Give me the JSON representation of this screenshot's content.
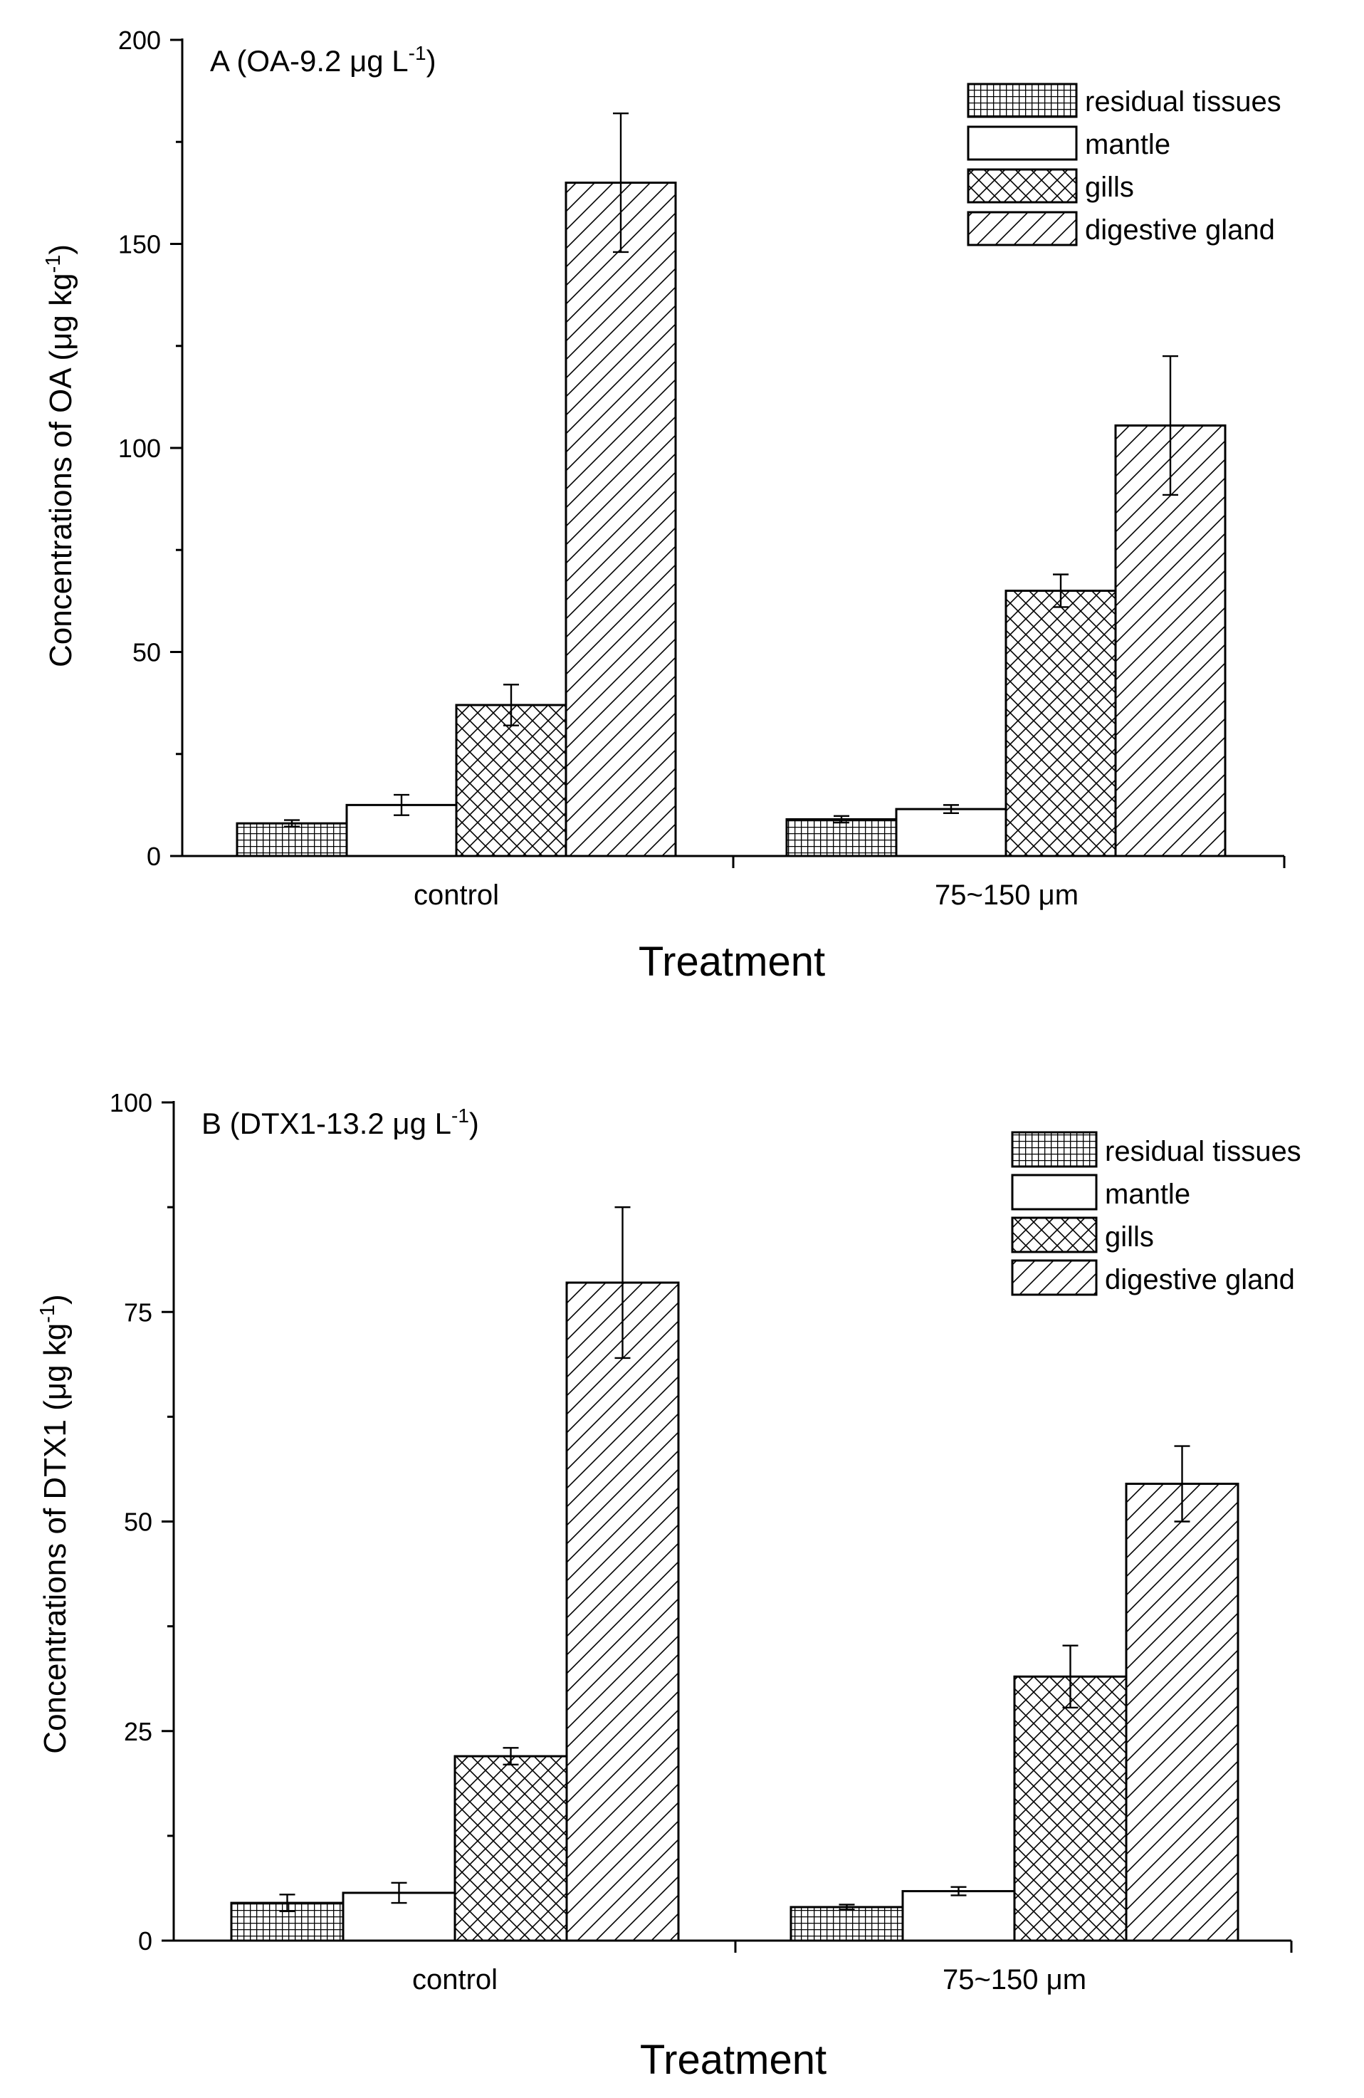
{
  "chart_data": [
    {
      "type": "bar",
      "title": "A (OA-9.2 μg L",
      "title_sup": "-1",
      "title_end": ")",
      "xlabel": "Treatment",
      "ylabel": "Concentrations of OA (μg kg",
      "ylabel_sup": "-1",
      "ylabel_end": ")",
      "ylim": [
        0,
        200
      ],
      "yticks": [
        "0",
        "50",
        "100",
        "150",
        "200"
      ],
      "legend_position": "top-right",
      "categories": [
        "control",
        "75~150 μm"
      ],
      "series": [
        {
          "name": "residual tissues",
          "pattern": "grid",
          "values": [
            8,
            9
          ],
          "errors": [
            0.8,
            0.8
          ]
        },
        {
          "name": "mantle",
          "pattern": "none",
          "values": [
            12.5,
            11.5
          ],
          "errors": [
            2.5,
            1.0
          ]
        },
        {
          "name": "gills",
          "pattern": "crosshatch",
          "values": [
            37,
            65
          ],
          "errors": [
            5,
            4
          ]
        },
        {
          "name": "digestive gland",
          "pattern": "diagonal",
          "values": [
            165,
            105.5
          ],
          "errors": [
            17,
            17
          ]
        }
      ]
    },
    {
      "type": "bar",
      "title": "B (DTX1-13.2 μg L",
      "title_sup": "-1",
      "title_end": ")",
      "xlabel": "Treatment",
      "ylabel": "Concentrations of DTX1 (μg kg",
      "ylabel_sup": "-1",
      "ylabel_end": ")",
      "ylim": [
        0,
        100
      ],
      "yticks": [
        "0",
        "25",
        "50",
        "75",
        "100"
      ],
      "legend_position": "top-right",
      "categories": [
        "control",
        "75~150 μm"
      ],
      "series": [
        {
          "name": "residual tissues",
          "pattern": "grid",
          "values": [
            4.5,
            4
          ],
          "errors": [
            1.0,
            0.3
          ]
        },
        {
          "name": "mantle",
          "pattern": "none",
          "values": [
            5.7,
            5.9
          ],
          "errors": [
            1.2,
            0.5
          ]
        },
        {
          "name": "gills",
          "pattern": "crosshatch",
          "values": [
            22,
            31.5
          ],
          "errors": [
            1.0,
            3.7
          ]
        },
        {
          "name": "digestive gland",
          "pattern": "diagonal",
          "values": [
            78.5,
            54.5
          ],
          "errors": [
            9,
            4.5
          ]
        }
      ]
    }
  ]
}
